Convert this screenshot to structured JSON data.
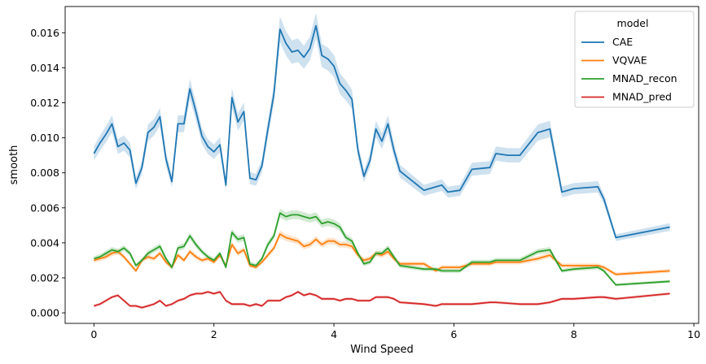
{
  "chart_data": {
    "type": "line",
    "title": "",
    "xlabel": "Wind Speed",
    "ylabel": "smooth",
    "xlim": [
      -0.48,
      10.08
    ],
    "ylim": [
      -0.0006,
      0.0175
    ],
    "x_ticks": [
      0,
      2,
      4,
      6,
      8,
      10
    ],
    "x_tick_labels": [
      "0",
      "2",
      "4",
      "6",
      "8",
      "10"
    ],
    "y_ticks": [
      0.0,
      0.002,
      0.004,
      0.006,
      0.008,
      0.01,
      0.012,
      0.014,
      0.016
    ],
    "y_tick_labels": [
      "0.000",
      "0.002",
      "0.004",
      "0.006",
      "0.008",
      "0.010",
      "0.012",
      "0.014",
      "0.016"
    ],
    "grid": false,
    "legend": {
      "title": "model",
      "placement": "top-right"
    },
    "series": [
      {
        "name": "CAE",
        "color": "#1f77b4",
        "points": [
          [
            0,
            0.0091
          ],
          [
            0.1,
            0.0097
          ],
          [
            0.2,
            0.0102
          ],
          [
            0.3,
            0.0108
          ],
          [
            0.4,
            0.0095
          ],
          [
            0.5,
            0.0097
          ],
          [
            0.6,
            0.0093
          ],
          [
            0.7,
            0.0074
          ],
          [
            0.8,
            0.0083
          ],
          [
            0.9,
            0.0103
          ],
          [
            1.0,
            0.0106
          ],
          [
            1.1,
            0.0112
          ],
          [
            1.2,
            0.0088
          ],
          [
            1.3,
            0.0075
          ],
          [
            1.4,
            0.0108
          ],
          [
            1.5,
            0.0108
          ],
          [
            1.6,
            0.0128
          ],
          [
            1.7,
            0.0115
          ],
          [
            1.8,
            0.0101
          ],
          [
            1.9,
            0.0095
          ],
          [
            2.0,
            0.0092
          ],
          [
            2.1,
            0.0096
          ],
          [
            2.2,
            0.0073
          ],
          [
            2.3,
            0.0123
          ],
          [
            2.4,
            0.0109
          ],
          [
            2.5,
            0.0115
          ],
          [
            2.6,
            0.0077
          ],
          [
            2.7,
            0.0076
          ],
          [
            2.8,
            0.0084
          ],
          [
            2.9,
            0.0105
          ],
          [
            3.0,
            0.0125
          ],
          [
            3.1,
            0.0162
          ],
          [
            3.2,
            0.0154
          ],
          [
            3.3,
            0.0149
          ],
          [
            3.4,
            0.015
          ],
          [
            3.5,
            0.0146
          ],
          [
            3.6,
            0.0151
          ],
          [
            3.7,
            0.0164
          ],
          [
            3.8,
            0.0147
          ],
          [
            3.9,
            0.0145
          ],
          [
            4.0,
            0.0141
          ],
          [
            4.1,
            0.0131
          ],
          [
            4.2,
            0.0127
          ],
          [
            4.3,
            0.0122
          ],
          [
            4.4,
            0.0093
          ],
          [
            4.5,
            0.0078
          ],
          [
            4.6,
            0.0087
          ],
          [
            4.7,
            0.0105
          ],
          [
            4.8,
            0.0098
          ],
          [
            4.9,
            0.0108
          ],
          [
            5.0,
            0.0093
          ],
          [
            5.1,
            0.0081
          ],
          [
            5.5,
            0.007
          ],
          [
            5.8,
            0.0073
          ],
          [
            5.9,
            0.0069
          ],
          [
            6.1,
            0.007
          ],
          [
            6.3,
            0.0082
          ],
          [
            6.6,
            0.0083
          ],
          [
            6.7,
            0.0091
          ],
          [
            6.9,
            0.009
          ],
          [
            7.1,
            0.009
          ],
          [
            7.4,
            0.0103
          ],
          [
            7.6,
            0.0105
          ],
          [
            7.8,
            0.0069
          ],
          [
            8.0,
            0.0071
          ],
          [
            8.4,
            0.0072
          ],
          [
            8.5,
            0.0065
          ],
          [
            8.7,
            0.0043
          ],
          [
            9.6,
            0.0049
          ]
        ]
      },
      {
        "name": "VQVAE",
        "color": "#ff7f0e",
        "points": [
          [
            0,
            0.003
          ],
          [
            0.1,
            0.0031
          ],
          [
            0.2,
            0.0032
          ],
          [
            0.3,
            0.0034
          ],
          [
            0.4,
            0.0035
          ],
          [
            0.5,
            0.0032
          ],
          [
            0.6,
            0.0028
          ],
          [
            0.7,
            0.0024
          ],
          [
            0.8,
            0.003
          ],
          [
            0.9,
            0.0032
          ],
          [
            1.0,
            0.0031
          ],
          [
            1.1,
            0.0034
          ],
          [
            1.2,
            0.0029
          ],
          [
            1.3,
            0.0026
          ],
          [
            1.4,
            0.0033
          ],
          [
            1.5,
            0.003
          ],
          [
            1.6,
            0.0035
          ],
          [
            1.7,
            0.0032
          ],
          [
            1.8,
            0.003
          ],
          [
            1.9,
            0.0031
          ],
          [
            2.0,
            0.0029
          ],
          [
            2.1,
            0.0033
          ],
          [
            2.2,
            0.0027
          ],
          [
            2.3,
            0.0039
          ],
          [
            2.4,
            0.0034
          ],
          [
            2.5,
            0.0036
          ],
          [
            2.6,
            0.0027
          ],
          [
            2.7,
            0.0026
          ],
          [
            2.8,
            0.0029
          ],
          [
            2.9,
            0.0033
          ],
          [
            3.0,
            0.0037
          ],
          [
            3.1,
            0.0045
          ],
          [
            3.2,
            0.0043
          ],
          [
            3.3,
            0.0042
          ],
          [
            3.4,
            0.0041
          ],
          [
            3.5,
            0.0038
          ],
          [
            3.6,
            0.0039
          ],
          [
            3.7,
            0.0042
          ],
          [
            3.8,
            0.0039
          ],
          [
            3.9,
            0.0041
          ],
          [
            4.0,
            0.0041
          ],
          [
            4.1,
            0.0039
          ],
          [
            4.2,
            0.0039
          ],
          [
            4.3,
            0.0038
          ],
          [
            4.4,
            0.0033
          ],
          [
            4.5,
            0.003
          ],
          [
            4.6,
            0.0031
          ],
          [
            4.7,
            0.0034
          ],
          [
            4.8,
            0.0033
          ],
          [
            4.9,
            0.0035
          ],
          [
            5.0,
            0.0031
          ],
          [
            5.1,
            0.0028
          ],
          [
            5.5,
            0.0028
          ],
          [
            5.7,
            0.0024
          ],
          [
            5.8,
            0.0026
          ],
          [
            6.1,
            0.0026
          ],
          [
            6.3,
            0.0028
          ],
          [
            6.6,
            0.0028
          ],
          [
            6.7,
            0.0029
          ],
          [
            7.1,
            0.0029
          ],
          [
            7.4,
            0.0031
          ],
          [
            7.6,
            0.0033
          ],
          [
            7.8,
            0.0027
          ],
          [
            8.0,
            0.0027
          ],
          [
            8.4,
            0.0027
          ],
          [
            8.5,
            0.0026
          ],
          [
            8.7,
            0.0022
          ],
          [
            9.6,
            0.0024
          ]
        ]
      },
      {
        "name": "MNAD_recon",
        "color": "#2ca02c",
        "points": [
          [
            0,
            0.0031
          ],
          [
            0.1,
            0.0032
          ],
          [
            0.2,
            0.0034
          ],
          [
            0.3,
            0.0036
          ],
          [
            0.4,
            0.0035
          ],
          [
            0.5,
            0.0037
          ],
          [
            0.6,
            0.0034
          ],
          [
            0.7,
            0.0027
          ],
          [
            0.8,
            0.003
          ],
          [
            0.9,
            0.0034
          ],
          [
            1.0,
            0.0036
          ],
          [
            1.1,
            0.0038
          ],
          [
            1.2,
            0.0031
          ],
          [
            1.3,
            0.0026
          ],
          [
            1.4,
            0.0037
          ],
          [
            1.5,
            0.0038
          ],
          [
            1.6,
            0.0044
          ],
          [
            1.7,
            0.0039
          ],
          [
            1.8,
            0.0035
          ],
          [
            1.9,
            0.0032
          ],
          [
            2.0,
            0.003
          ],
          [
            2.1,
            0.0034
          ],
          [
            2.2,
            0.0026
          ],
          [
            2.3,
            0.0046
          ],
          [
            2.4,
            0.0042
          ],
          [
            2.5,
            0.0043
          ],
          [
            2.6,
            0.0028
          ],
          [
            2.7,
            0.0027
          ],
          [
            2.8,
            0.0031
          ],
          [
            2.9,
            0.0039
          ],
          [
            3.0,
            0.0044
          ],
          [
            3.1,
            0.0057
          ],
          [
            3.2,
            0.0055
          ],
          [
            3.3,
            0.0056
          ],
          [
            3.4,
            0.0056
          ],
          [
            3.5,
            0.0055
          ],
          [
            3.6,
            0.0054
          ],
          [
            3.7,
            0.0055
          ],
          [
            3.8,
            0.0051
          ],
          [
            3.9,
            0.0052
          ],
          [
            4.0,
            0.0051
          ],
          [
            4.1,
            0.0049
          ],
          [
            4.2,
            0.0043
          ],
          [
            4.3,
            0.0041
          ],
          [
            4.4,
            0.0034
          ],
          [
            4.5,
            0.0028
          ],
          [
            4.6,
            0.0029
          ],
          [
            4.7,
            0.0034
          ],
          [
            4.8,
            0.0034
          ],
          [
            4.9,
            0.0037
          ],
          [
            5.0,
            0.0032
          ],
          [
            5.1,
            0.0027
          ],
          [
            5.5,
            0.0025
          ],
          [
            5.7,
            0.0025
          ],
          [
            5.8,
            0.0024
          ],
          [
            6.1,
            0.0024
          ],
          [
            6.3,
            0.0029
          ],
          [
            6.6,
            0.0029
          ],
          [
            6.7,
            0.003
          ],
          [
            7.1,
            0.003
          ],
          [
            7.4,
            0.0035
          ],
          [
            7.6,
            0.0036
          ],
          [
            7.8,
            0.0024
          ],
          [
            8.0,
            0.0025
          ],
          [
            8.4,
            0.0026
          ],
          [
            8.5,
            0.0024
          ],
          [
            8.7,
            0.0016
          ],
          [
            9.6,
            0.0018
          ]
        ]
      },
      {
        "name": "MNAD_pred",
        "color": "#d62728",
        "points": [
          [
            0,
            0.0004
          ],
          [
            0.1,
            0.0005
          ],
          [
            0.2,
            0.0007
          ],
          [
            0.3,
            0.0009
          ],
          [
            0.4,
            0.001
          ],
          [
            0.5,
            0.0007
          ],
          [
            0.6,
            0.0004
          ],
          [
            0.7,
            0.0004
          ],
          [
            0.8,
            0.0003
          ],
          [
            0.9,
            0.0004
          ],
          [
            1.0,
            0.0005
          ],
          [
            1.1,
            0.0007
          ],
          [
            1.2,
            0.0004
          ],
          [
            1.3,
            0.0005
          ],
          [
            1.4,
            0.0007
          ],
          [
            1.5,
            0.0008
          ],
          [
            1.6,
            0.001
          ],
          [
            1.7,
            0.0011
          ],
          [
            1.8,
            0.0011
          ],
          [
            1.9,
            0.0012
          ],
          [
            2.0,
            0.0011
          ],
          [
            2.1,
            0.0012
          ],
          [
            2.2,
            0.0007
          ],
          [
            2.3,
            0.0005
          ],
          [
            2.4,
            0.0005
          ],
          [
            2.5,
            0.0005
          ],
          [
            2.6,
            0.0004
          ],
          [
            2.7,
            0.0005
          ],
          [
            2.8,
            0.0004
          ],
          [
            2.9,
            0.0007
          ],
          [
            3.0,
            0.0007
          ],
          [
            3.1,
            0.0007
          ],
          [
            3.2,
            0.0009
          ],
          [
            3.3,
            0.001
          ],
          [
            3.4,
            0.0012
          ],
          [
            3.5,
            0.001
          ],
          [
            3.6,
            0.0011
          ],
          [
            3.7,
            0.001
          ],
          [
            3.8,
            0.0008
          ],
          [
            3.9,
            0.0008
          ],
          [
            4.0,
            0.0008
          ],
          [
            4.1,
            0.0007
          ],
          [
            4.2,
            0.0008
          ],
          [
            4.3,
            0.0008
          ],
          [
            4.4,
            0.0007
          ],
          [
            4.5,
            0.0007
          ],
          [
            4.6,
            0.0007
          ],
          [
            4.7,
            0.0009
          ],
          [
            4.8,
            0.0009
          ],
          [
            4.9,
            0.0009
          ],
          [
            5.0,
            0.0008
          ],
          [
            5.1,
            0.0006
          ],
          [
            5.5,
            0.0005
          ],
          [
            5.7,
            0.0004
          ],
          [
            5.8,
            0.0005
          ],
          [
            6.1,
            0.0005
          ],
          [
            6.3,
            0.0005
          ],
          [
            6.6,
            0.0006
          ],
          [
            6.7,
            0.0006
          ],
          [
            7.1,
            0.0005
          ],
          [
            7.4,
            0.0005
          ],
          [
            7.6,
            0.0006
          ],
          [
            7.8,
            0.0008
          ],
          [
            8.0,
            0.0008
          ],
          [
            8.4,
            0.0009
          ],
          [
            8.5,
            0.0009
          ],
          [
            8.7,
            0.0008
          ],
          [
            9.6,
            0.0011
          ]
        ]
      }
    ]
  }
}
